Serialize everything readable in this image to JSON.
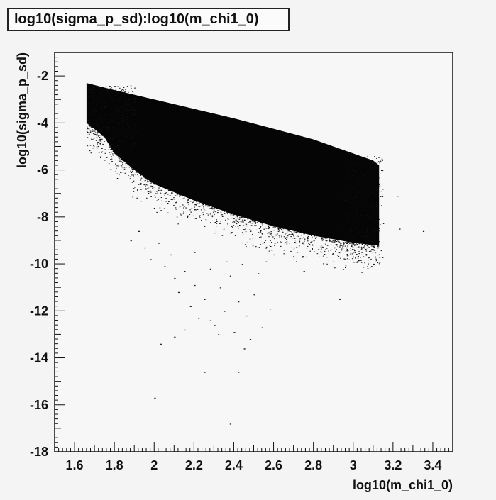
{
  "title": "log10(sigma_p_sd):log10(m_chi1_0)",
  "chart_data": {
    "type": "scatter",
    "title": "log10(sigma_p_sd):log10(m_chi1_0)",
    "xlabel": "log10(m_chi1_0)",
    "ylabel": "log10(sigma_p_sd)",
    "xlim": [
      1.5,
      3.5
    ],
    "ylim": [
      -18,
      -1
    ],
    "xticks": [
      1.6,
      1.8,
      2,
      2.2,
      2.4,
      2.6,
      2.8,
      3,
      3.2,
      3.4
    ],
    "yticks": [
      -2,
      -4,
      -6,
      -8,
      -10,
      -12,
      -14,
      -16,
      -18
    ],
    "xtick_labels": [
      "1.6",
      "1.8",
      "2",
      "2.2",
      "2.4",
      "2.6",
      "2.8",
      "3",
      "3.2",
      "3.4"
    ],
    "ytick_labels": [
      "-2",
      "-4",
      "-6",
      "-8",
      "-10",
      "-12",
      "-14",
      "-16",
      "-18"
    ],
    "grid": false,
    "dense_region": {
      "upper_boundary": [
        [
          1.66,
          -2.3
        ],
        [
          1.8,
          -2.6
        ],
        [
          2.0,
          -3.0
        ],
        [
          2.2,
          -3.4
        ],
        [
          2.4,
          -3.8
        ],
        [
          2.6,
          -4.25
        ],
        [
          2.8,
          -4.7
        ],
        [
          3.0,
          -5.3
        ],
        [
          3.1,
          -5.6
        ]
      ],
      "lower_boundary": [
        [
          1.66,
          -4.0
        ],
        [
          1.75,
          -4.6
        ],
        [
          1.8,
          -5.3
        ],
        [
          1.9,
          -6.0
        ],
        [
          2.0,
          -6.6
        ],
        [
          2.2,
          -7.3
        ],
        [
          2.4,
          -7.9
        ],
        [
          2.6,
          -8.4
        ],
        [
          2.8,
          -8.8
        ],
        [
          3.0,
          -9.1
        ],
        [
          3.1,
          -9.2
        ]
      ],
      "right_edge_x": 3.13
    },
    "sparse_points": [
      [
        1.88,
        -9.0
      ],
      [
        1.92,
        -8.6
      ],
      [
        1.95,
        -9.3
      ],
      [
        1.98,
        -9.8
      ],
      [
        2.02,
        -9.1
      ],
      [
        2.05,
        -10.1
      ],
      [
        2.08,
        -9.6
      ],
      [
        2.1,
        -10.6
      ],
      [
        2.12,
        -11.2
      ],
      [
        2.15,
        -10.3
      ],
      [
        2.18,
        -11.8
      ],
      [
        2.2,
        -10.9
      ],
      [
        2.22,
        -12.3
      ],
      [
        2.25,
        -11.5
      ],
      [
        2.28,
        -10.2
      ],
      [
        2.3,
        -12.6
      ],
      [
        2.33,
        -11.0
      ],
      [
        2.35,
        -12.0
      ],
      [
        2.38,
        -10.5
      ],
      [
        2.4,
        -12.9
      ],
      [
        2.42,
        -11.6
      ],
      [
        2.44,
        -10.0
      ],
      [
        2.46,
        -12.2
      ],
      [
        2.48,
        -13.2
      ],
      [
        2.5,
        -11.3
      ],
      [
        2.52,
        -10.4
      ],
      [
        2.54,
        -12.7
      ],
      [
        2.56,
        -9.9
      ],
      [
        2.58,
        -11.9
      ],
      [
        2.6,
        -9.6
      ],
      [
        2.65,
        -9.4
      ],
      [
        2.7,
        -9.3
      ],
      [
        2.75,
        -10.3
      ],
      [
        2.93,
        -11.5
      ],
      [
        3.1,
        -10.0
      ],
      [
        3.22,
        -7.1
      ],
      [
        3.23,
        -8.5
      ],
      [
        3.35,
        -8.6
      ],
      [
        2.03,
        -13.4
      ],
      [
        2.1,
        -13.1
      ],
      [
        2.25,
        -14.6
      ],
      [
        2.42,
        -14.6
      ],
      [
        2.0,
        -15.7
      ],
      [
        2.38,
        -16.8
      ],
      [
        2.15,
        -12.8
      ],
      [
        2.32,
        -13.0
      ],
      [
        2.45,
        -13.6
      ],
      [
        2.28,
        -12.4
      ],
      [
        2.36,
        -9.9
      ],
      [
        2.2,
        -9.5
      ]
    ]
  }
}
